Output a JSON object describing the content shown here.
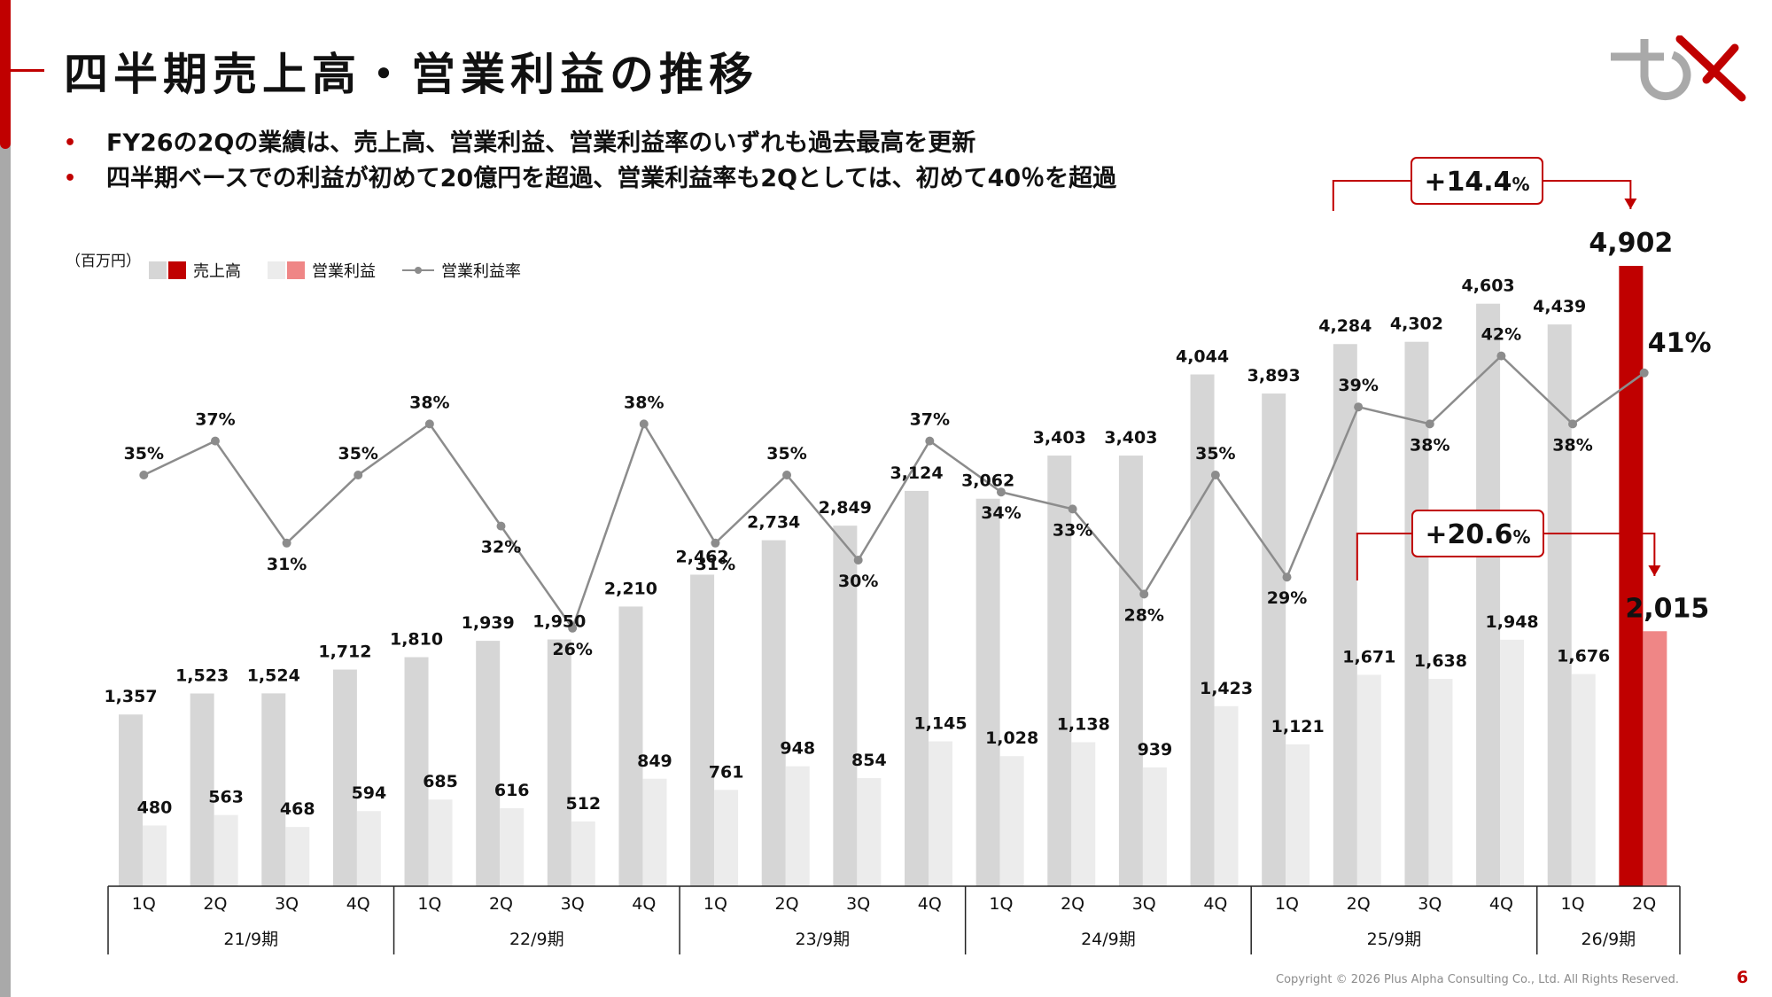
{
  "title": "四半期売上高・営業利益の推移",
  "bullets": [
    "FY26の2Qの業績は、売上高、営業利益、営業利益率のいずれも過去最高を更新",
    "四半期ベースでの利益が初めて20億円を超過、営業利益率も2Qとしては、初めて40％を超過"
  ],
  "bullet_marker": "•",
  "chart_data": {
    "type": "bar",
    "unit_label": "（百万円）",
    "legend": [
      "売上高",
      "営業利益",
      "営業利益率"
    ],
    "categories": [
      "1Q",
      "2Q",
      "3Q",
      "4Q",
      "1Q",
      "2Q",
      "3Q",
      "4Q",
      "1Q",
      "2Q",
      "3Q",
      "4Q",
      "1Q",
      "2Q",
      "3Q",
      "4Q",
      "1Q",
      "2Q",
      "3Q",
      "4Q",
      "1Q",
      "2Q"
    ],
    "groups": [
      {
        "label": "21/9期",
        "count": 4
      },
      {
        "label": "22/9期",
        "count": 4
      },
      {
        "label": "23/9期",
        "count": 4
      },
      {
        "label": "24/9期",
        "count": 4
      },
      {
        "label": "25/9期",
        "count": 4
      },
      {
        "label": "26/9期",
        "count": 2
      }
    ],
    "series": [
      {
        "name": "売上高",
        "type": "bar",
        "values": [
          1357,
          1523,
          1524,
          1712,
          1810,
          1939,
          1950,
          2210,
          2462,
          2734,
          2849,
          3124,
          3062,
          3403,
          3403,
          4044,
          3893,
          4284,
          4302,
          4603,
          4439,
          4902
        ]
      },
      {
        "name": "営業利益",
        "type": "bar",
        "values": [
          480,
          563,
          468,
          594,
          685,
          616,
          512,
          849,
          761,
          948,
          854,
          1145,
          1028,
          1138,
          939,
          1423,
          1121,
          1671,
          1638,
          1948,
          1676,
          2015
        ]
      },
      {
        "name": "営業利益率",
        "type": "line",
        "values": [
          35,
          37,
          31,
          35,
          38,
          32,
          26,
          38,
          31,
          35,
          30,
          37,
          34,
          33,
          28,
          35,
          29,
          39,
          38,
          42,
          38,
          41
        ],
        "labels": [
          "35%",
          "37%",
          "31%",
          "35%",
          "38%",
          "32%",
          "26%",
          "38%",
          "31%",
          "35%",
          "30%",
          "37%",
          "34%",
          "33%",
          "28%",
          "35%",
          "29%",
          "39%",
          "38%",
          "42%",
          "38%",
          "41%"
        ]
      }
    ],
    "value_labels_sales": [
      "1,357",
      "1,523",
      "1,524",
      "1,712",
      "1,810",
      "1,939",
      "1,950",
      "2,210",
      "2,462",
      "2,734",
      "2,849",
      "3,124",
      "3,062",
      "3,403",
      "3,403",
      "4,044",
      "3,893",
      "4,284",
      "4,302",
      "4,603",
      "4,439",
      "4,902"
    ],
    "value_labels_profit": [
      "480",
      "563",
      "468",
      "594",
      "685",
      "616",
      "512",
      "849",
      "761",
      "948",
      "854",
      "1,145",
      "1,028",
      "1,138",
      "939",
      "1,423",
      "1,121",
      "1,671",
      "1,638",
      "1,948",
      "1,676",
      "2,015"
    ],
    "highlight_index": 21,
    "callouts": [
      {
        "text": "+14.4",
        "suffix": "%",
        "from_index": 17,
        "to_index": 21,
        "series": "売上高"
      },
      {
        "text": "+20.6",
        "suffix": "%",
        "from_index": 17,
        "to_index": 21,
        "series": "営業利益"
      }
    ],
    "colors": {
      "sales": "#d6d6d6",
      "profit": "#ececec",
      "sales_highlight": "#c00000",
      "profit_highlight": "#ef8686",
      "line": "#8c8c8c",
      "accent": "#c00000"
    }
  },
  "copyright": "Copyright © 2026 Plus Alpha Consulting Co., Ltd. All Rights Reserved.",
  "page_number": "6"
}
